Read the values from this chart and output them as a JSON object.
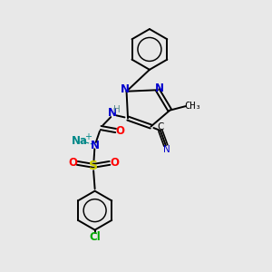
{
  "bg_color": "#e8e8e8",
  "atom_colors": {
    "C": "#000000",
    "N": "#0000cc",
    "O": "#ff0000",
    "S": "#cccc00",
    "Cl": "#00aa00",
    "Na": "#008888",
    "H": "#558888"
  },
  "bond_color": "#000000",
  "figsize": [
    3.0,
    3.0
  ],
  "dpi": 100
}
